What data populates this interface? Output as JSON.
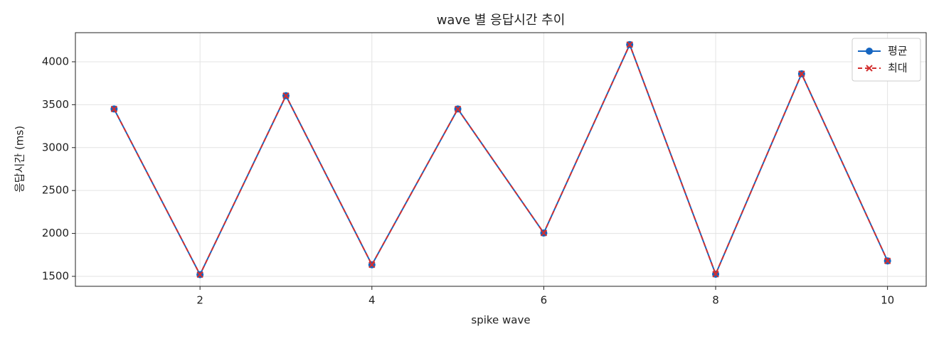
{
  "chart_data": {
    "type": "line",
    "title": "wave 별 응답시간 추이",
    "x_label": "spike wave",
    "y_label": "응답시간 (ms)",
    "x": [
      1,
      2,
      3,
      4,
      5,
      6,
      7,
      8,
      9,
      10
    ],
    "series": [
      {
        "name": "평균",
        "color": "#1565c0",
        "linestyle": "solid",
        "marker": "circle",
        "values": [
          3450,
          1520,
          3605,
          1635,
          3450,
          2005,
          4200,
          1525,
          3860,
          1680
        ]
      },
      {
        "name": "최대",
        "color": "#d32f2f",
        "linestyle": "dashed",
        "marker": "x",
        "values": [
          3450,
          1520,
          3605,
          1635,
          3450,
          2005,
          4200,
          1525,
          3860,
          1680
        ]
      }
    ],
    "xlim": [
      0.55,
      10.45
    ],
    "xticks": [
      2,
      4,
      6,
      8,
      10
    ],
    "ylim": [
      1384,
      4339
    ],
    "yticks": [
      1500,
      2000,
      2500,
      3000,
      3500,
      4000
    ],
    "grid": true,
    "legend": "upper right"
  }
}
